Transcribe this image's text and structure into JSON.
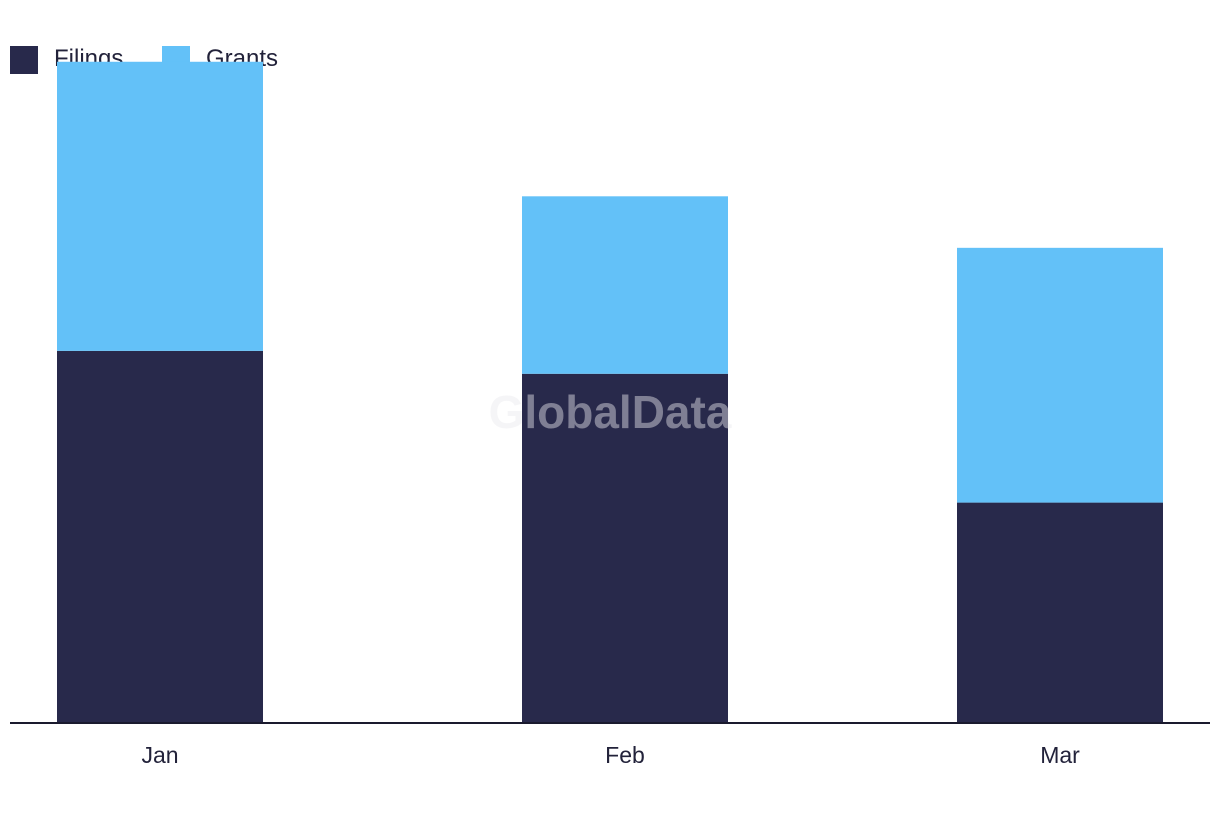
{
  "chart_data": {
    "type": "bar",
    "stacked": true,
    "categories": [
      "Jan",
      "Feb",
      "Mar"
    ],
    "series": [
      {
        "name": "Filings",
        "values": [
          65,
          61,
          38.5
        ],
        "color": "#28294b"
      },
      {
        "name": "Grants",
        "values": [
          50.5,
          31,
          44.5
        ],
        "color": "#63c1f8"
      }
    ],
    "title": "",
    "xlabel": "",
    "ylabel": "",
    "ylim": [
      0,
      120
    ],
    "grid": false,
    "legend_position": "top-left",
    "watermark": "GlobalData"
  }
}
